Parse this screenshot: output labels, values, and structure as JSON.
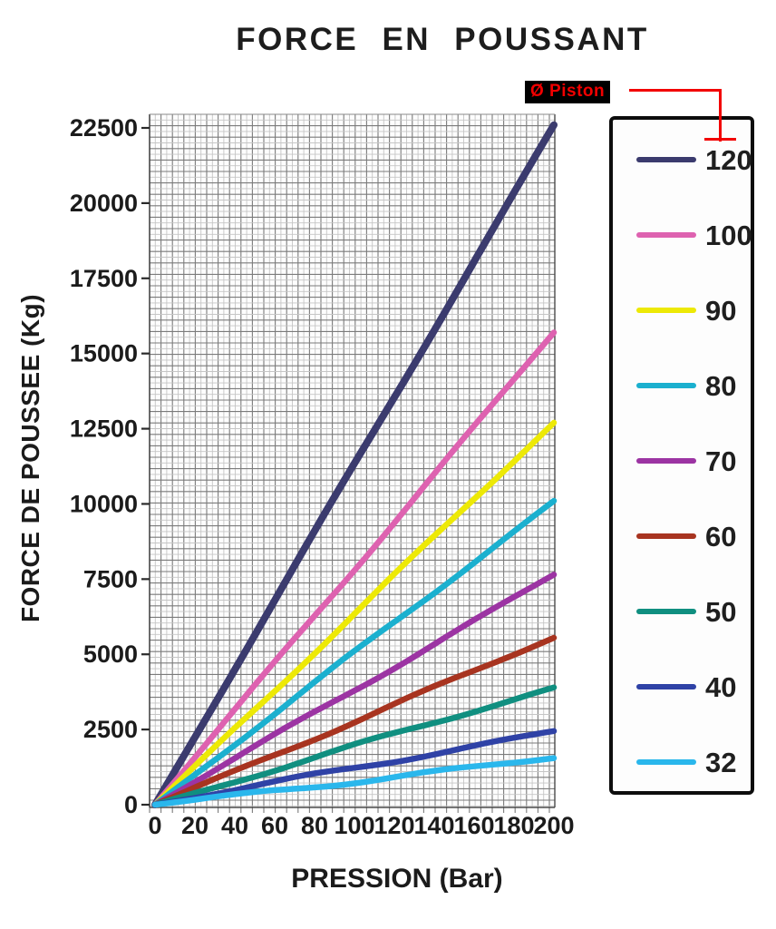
{
  "title": "FORCE EN POUSSANT",
  "callout": {
    "label": "Ø Piston",
    "text_color": "#f20000",
    "background": "#000000"
  },
  "chart_data": {
    "type": "line",
    "title": "FORCE EN POUSSANT",
    "xlabel": "PRESSION (Bar)",
    "ylabel": "FORCE DE POUSSEE (Kg)",
    "x_units": "Bar",
    "y_units": "Kg",
    "xlim": [
      0,
      200
    ],
    "ylim": [
      0,
      22500
    ],
    "x_ticks": [
      0,
      20,
      40,
      60,
      80,
      100,
      120,
      140,
      160,
      180,
      200
    ],
    "y_ticks": [
      0,
      2500,
      5000,
      7500,
      10000,
      12500,
      15000,
      17500,
      20000,
      22500
    ],
    "grid": true,
    "legend_title": "Ø Piston",
    "legend_position": "right",
    "relationship": "linear through origin",
    "series": [
      {
        "name": "120",
        "diameter_mm": 120,
        "color": "#3b3b6e",
        "x": [
          0,
          200
        ],
        "values": [
          0,
          22600
        ]
      },
      {
        "name": "100",
        "diameter_mm": 100,
        "color": "#de62b0",
        "x": [
          0,
          200
        ],
        "values": [
          0,
          15700
        ]
      },
      {
        "name": "90",
        "diameter_mm": 90,
        "color": "#ede906",
        "x": [
          0,
          200
        ],
        "values": [
          0,
          12700
        ]
      },
      {
        "name": "80",
        "diameter_mm": 80,
        "color": "#1bb0cf",
        "x": [
          0,
          200
        ],
        "values": [
          0,
          10100
        ]
      },
      {
        "name": "70",
        "diameter_mm": 70,
        "color": "#9c34a3",
        "x": [
          0,
          200
        ],
        "values": [
          0,
          7650
        ]
      },
      {
        "name": "60",
        "diameter_mm": 60,
        "color": "#a83420",
        "x": [
          0,
          200
        ],
        "values": [
          0,
          5550
        ]
      },
      {
        "name": "50",
        "diameter_mm": 50,
        "color": "#108f80",
        "x": [
          0,
          200
        ],
        "values": [
          0,
          3900
        ]
      },
      {
        "name": "40",
        "diameter_mm": 40,
        "color": "#2f42a6",
        "x": [
          0,
          200
        ],
        "values": [
          0,
          2450
        ]
      },
      {
        "name": "32",
        "diameter_mm": 32,
        "color": "#2ab7ec",
        "x": [
          0,
          200
        ],
        "values": [
          0,
          1550
        ]
      }
    ]
  }
}
